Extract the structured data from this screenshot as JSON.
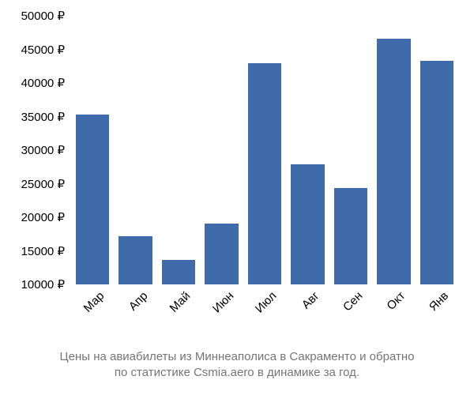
{
  "price_chart": {
    "type": "bar",
    "categories": [
      "Мар",
      "Апр",
      "Май",
      "Июн",
      "Июл",
      "Авг",
      "Сен",
      "Окт",
      "Янв"
    ],
    "values": [
      35300,
      17200,
      13700,
      19100,
      42900,
      27900,
      24400,
      46600,
      43300
    ],
    "bar_color": "#3f6bab",
    "background_color": "#ffffff",
    "currency_suffix": " ₽",
    "ylim": [
      10000,
      50000
    ],
    "ytick_step": 5000,
    "ytick_labels": [
      "10000 ₽",
      "15000 ₽",
      "20000 ₽",
      "25000 ₽",
      "30000 ₽",
      "35000 ₽",
      "40000 ₽",
      "45000 ₽",
      "50000 ₽"
    ],
    "bar_width_ratio": 0.78,
    "label_fontsize": 15,
    "xlabel_rotation_deg": -45,
    "caption_line1": "Цены на авиабилеты из Миннеаполиса в Сакраменто и обратно",
    "caption_line2": "по статистике Csmia.aero в динамике за год.",
    "caption_color": "#757575",
    "caption_fontsize": 15
  }
}
